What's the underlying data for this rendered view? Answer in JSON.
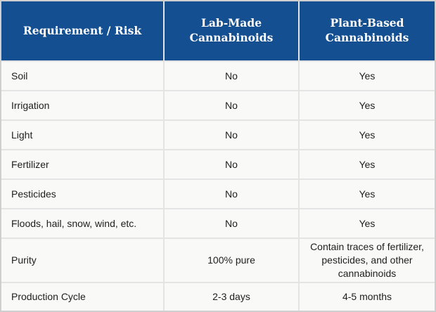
{
  "table": {
    "headers": {
      "requirement": "Requirement / Risk",
      "lab_made": "Lab-Made Cannabinoids",
      "plant_based": "Plant-Based Cannabinoids"
    },
    "rows": [
      {
        "label": "Soil",
        "lab": "No",
        "plant": "Yes"
      },
      {
        "label": "Irrigation",
        "lab": "No",
        "plant": "Yes"
      },
      {
        "label": "Light",
        "lab": "No",
        "plant": "Yes"
      },
      {
        "label": "Fertilizer",
        "lab": "No",
        "plant": "Yes"
      },
      {
        "label": "Pesticides",
        "lab": "No",
        "plant": "Yes"
      },
      {
        "label": "Floods, hail, snow, wind, etc.",
        "lab": "No",
        "plant": "Yes"
      },
      {
        "label": "Purity",
        "lab": "100% pure",
        "plant": "Contain traces of fertilizer, pesticides, and other cannabinoids"
      },
      {
        "label": "Production Cycle",
        "lab": "2-3 days",
        "plant": "4-5 months"
      }
    ],
    "colors": {
      "header_background": "#145091",
      "header_text": "#ffffff",
      "cell_background": "#f9f9f8",
      "gridline": "#e4e4e4",
      "outer_border": "#cfcfcf",
      "body_text": "#1e1e1e"
    }
  },
  "chart_data": {
    "type": "table",
    "title": "",
    "columns": [
      "Requirement / Risk",
      "Lab-Made Cannabinoids",
      "Plant-Based Cannabinoids"
    ],
    "rows": [
      [
        "Soil",
        "No",
        "Yes"
      ],
      [
        "Irrigation",
        "No",
        "Yes"
      ],
      [
        "Light",
        "No",
        "Yes"
      ],
      [
        "Fertilizer",
        "No",
        "Yes"
      ],
      [
        "Pesticides",
        "No",
        "Yes"
      ],
      [
        "Floods, hail, snow, wind, etc.",
        "No",
        "Yes"
      ],
      [
        "Purity",
        "100% pure",
        "Contain traces of fertilizer, pesticides, and other cannabinoids"
      ],
      [
        "Production Cycle",
        "2-3 days",
        "4-5 months"
      ]
    ]
  }
}
